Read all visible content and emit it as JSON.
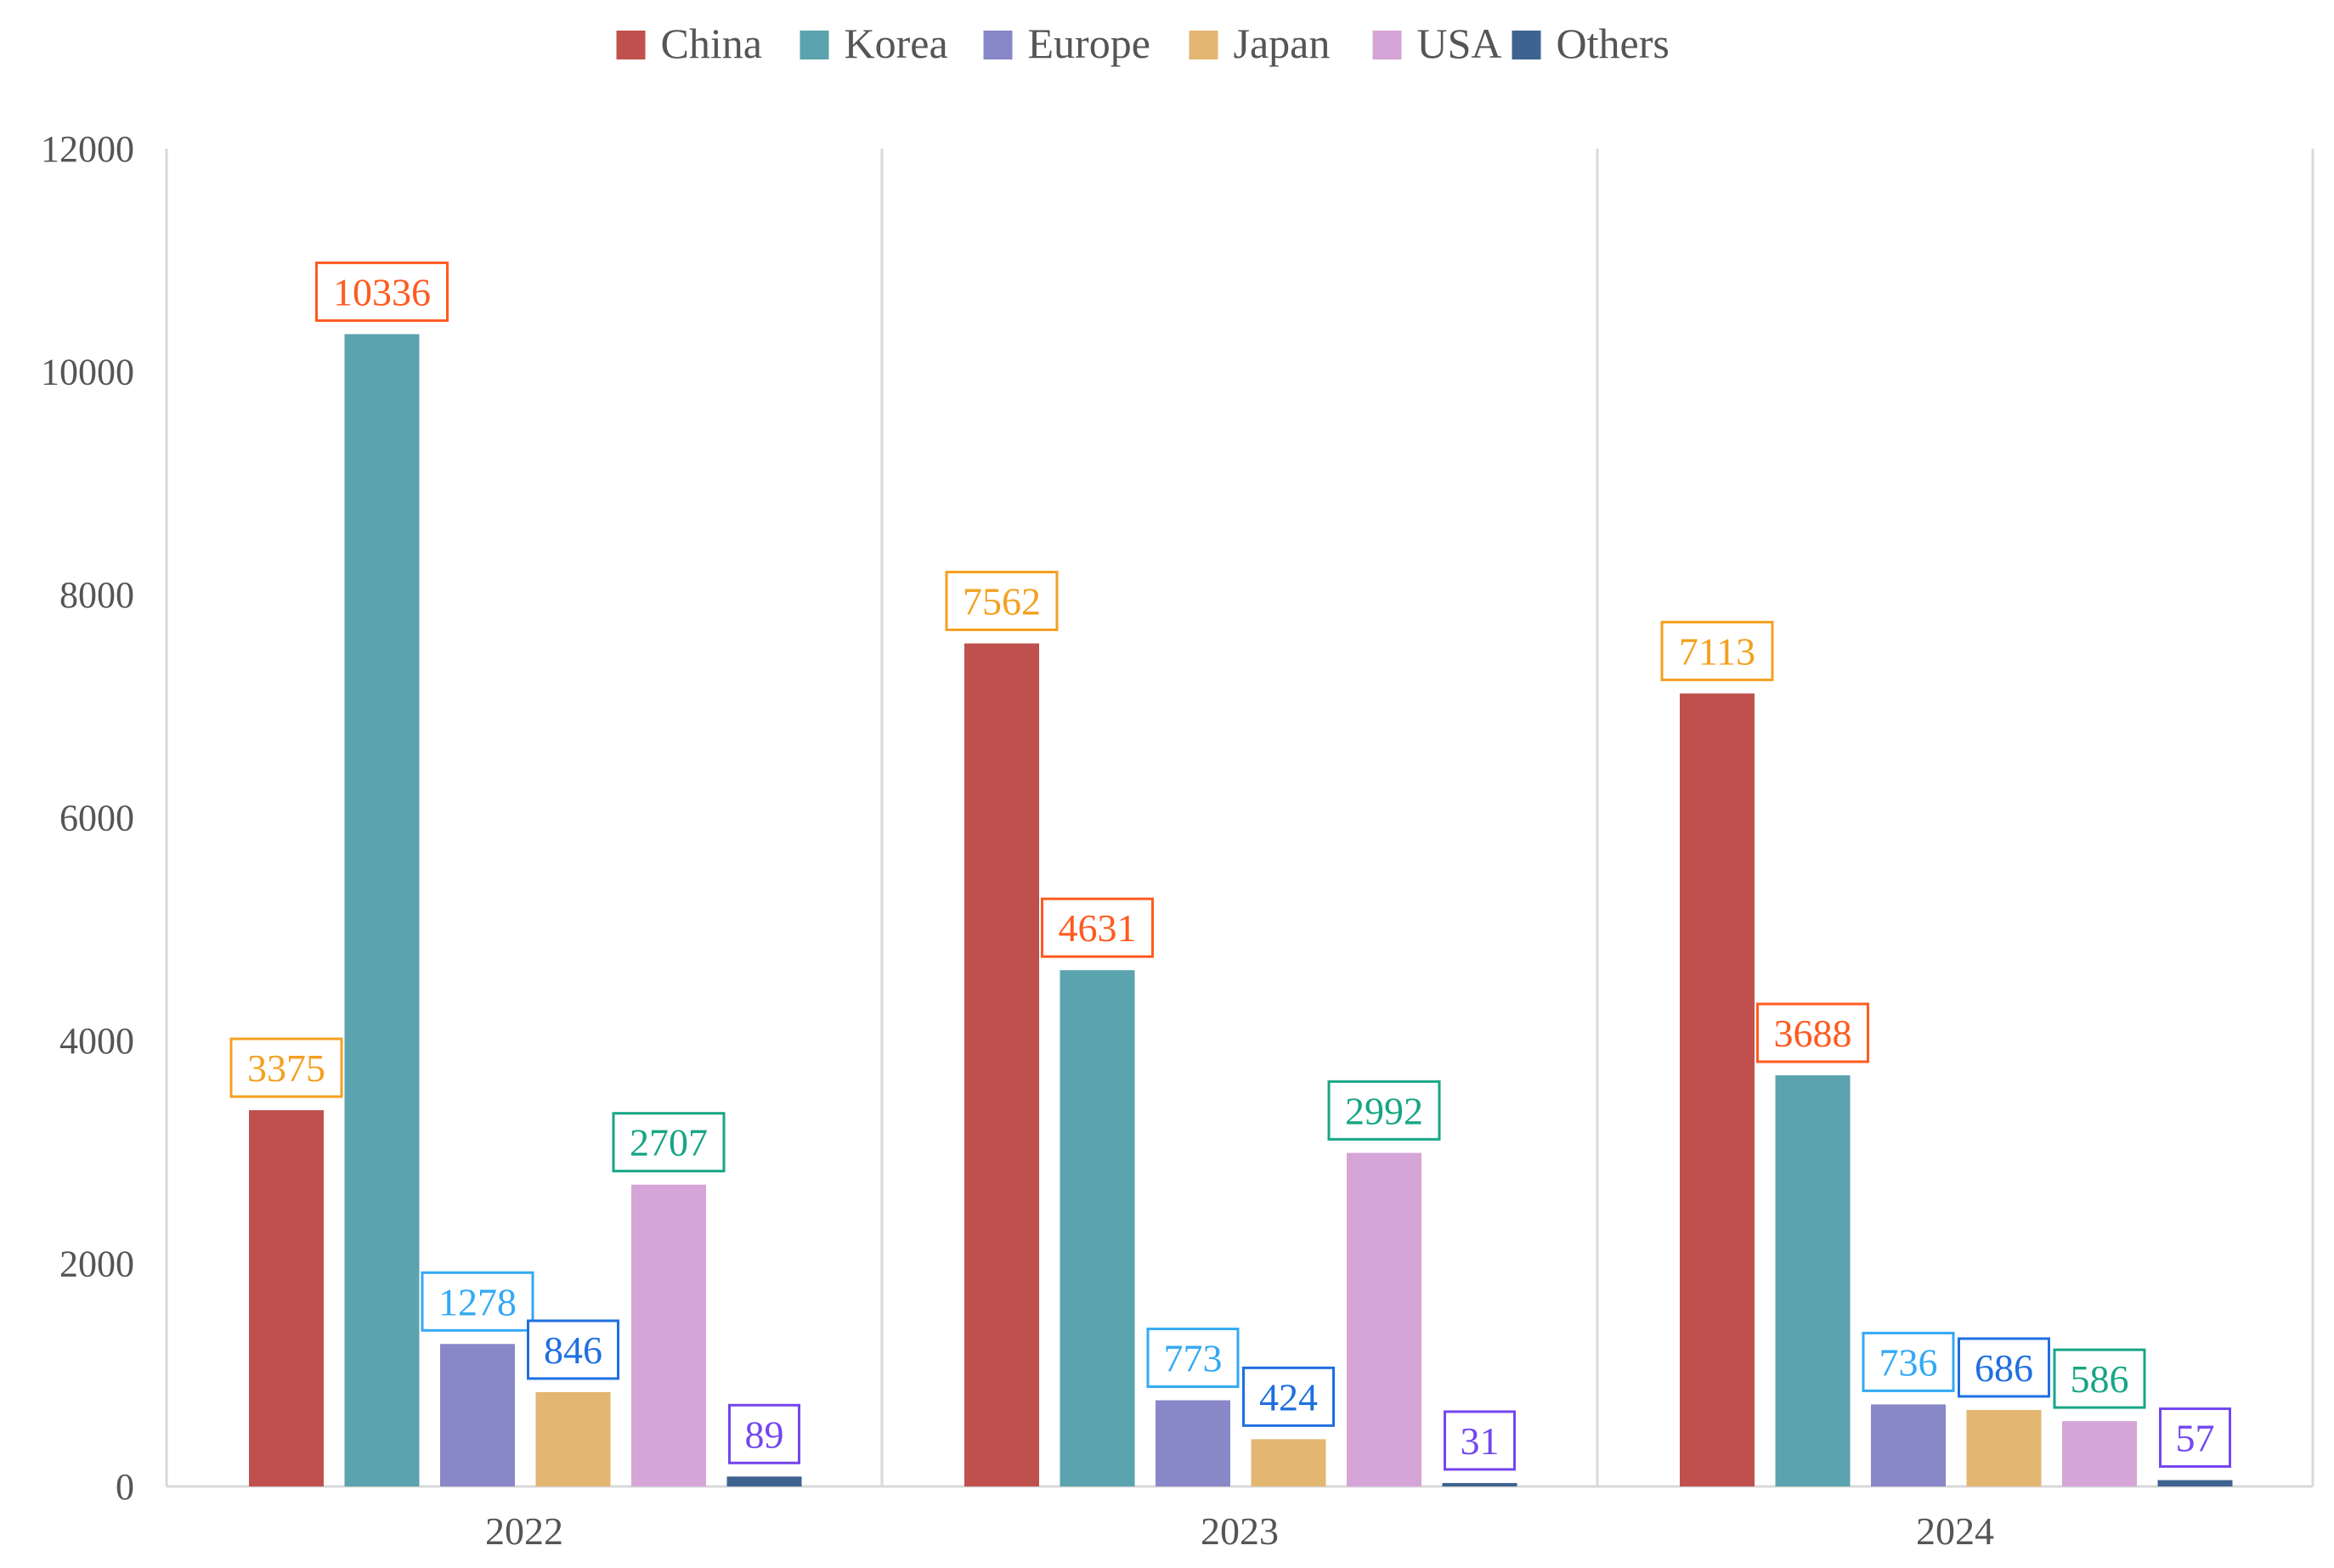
{
  "chart_data": {
    "type": "bar",
    "categories": [
      "2022",
      "2023",
      "2024"
    ],
    "series": [
      {
        "name": "China",
        "color": "#C0504D",
        "values": [
          3375,
          7562,
          7113
        ]
      },
      {
        "name": "Korea",
        "color": "#5BA3AE",
        "values": [
          10336,
          4631,
          3688
        ]
      },
      {
        "name": "Europe",
        "color": "#8887C7",
        "values": [
          1278,
          773,
          736
        ]
      },
      {
        "name": "Japan",
        "color": "#E3B672",
        "values": [
          846,
          424,
          686
        ]
      },
      {
        "name": "USA",
        "color": "#D4A5D6",
        "values": [
          2707,
          2992,
          586
        ]
      },
      {
        "name": "Others",
        "color": "#3F6391",
        "values": [
          89,
          31,
          57
        ]
      }
    ],
    "data_label_colors": [
      [
        "#F4A020",
        "#FF5A1F",
        "#33A9F5",
        "#1F6FE0",
        "#17A585",
        "#7446F0"
      ],
      [
        "#F4A020",
        "#FF5A1F",
        "#33A9F5",
        "#1F6FE0",
        "#17A585",
        "#7446F0"
      ],
      [
        "#F4A020",
        "#FF5A1F",
        "#33A9F5",
        "#1F6FE0",
        "#17A585",
        "#7446F0"
      ]
    ],
    "ylim": [
      0,
      12000
    ],
    "yticks": [
      0,
      2000,
      4000,
      6000,
      8000,
      10000,
      12000
    ],
    "legend_position": "top-center",
    "grid": "vertical category separators",
    "xlabel": "",
    "ylabel": "",
    "title": ""
  }
}
